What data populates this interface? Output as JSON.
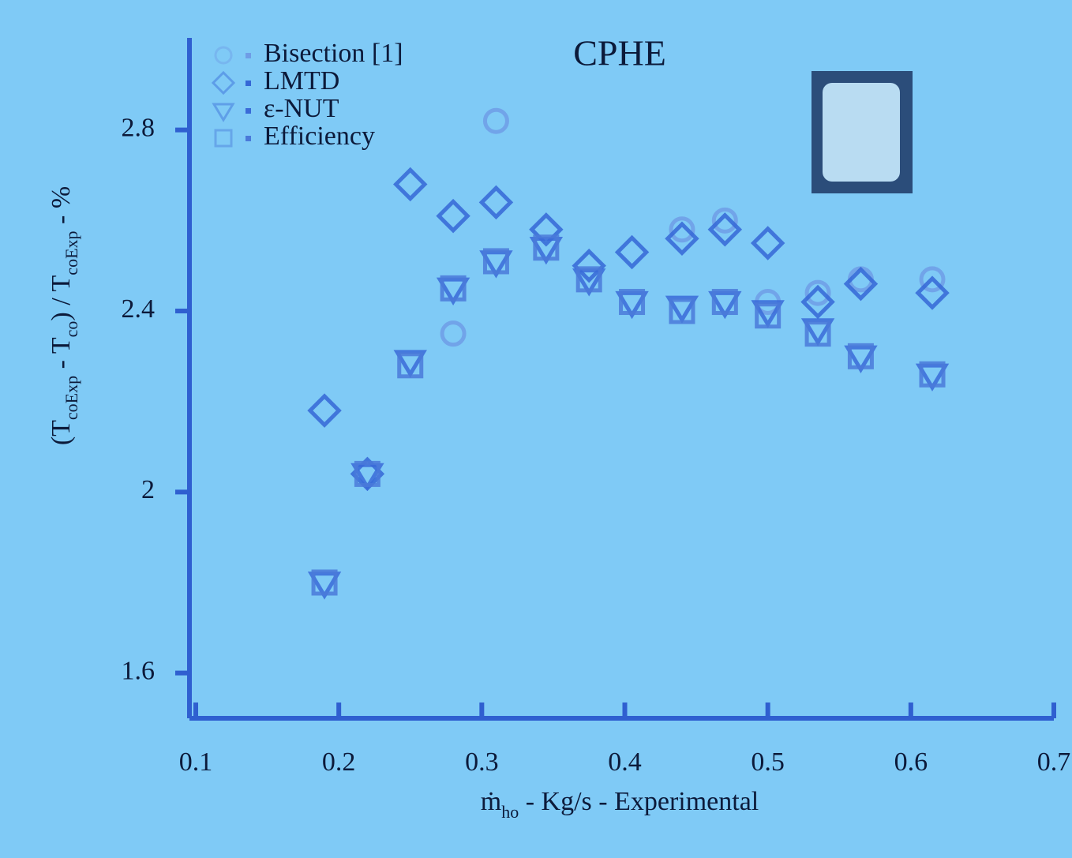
{
  "chart_data": {
    "type": "scatter",
    "title": "CPHE",
    "xlabel": [
      "ṁ",
      "ho",
      " - Kg/s - Experimental"
    ],
    "ylabel": [
      "(T",
      "coExp",
      " - T",
      "co",
      ") / T",
      "coExp",
      " - %"
    ],
    "xlim": [
      0.1,
      0.7
    ],
    "xticks": [
      0.1,
      0.2,
      0.3,
      0.4,
      0.5,
      0.6,
      0.7
    ],
    "ylim": [
      1.5,
      3.0
    ],
    "yticks": [
      1.6,
      2,
      2.4,
      2.8
    ],
    "legend": "upper left",
    "series": [
      {
        "name": "Bisection [1]",
        "color": "#6f9de6",
        "marker": "circle",
        "x": [
          0.28,
          0.31,
          0.44,
          0.47,
          0.5,
          0.535,
          0.565,
          0.615
        ],
        "values": [
          2.35,
          2.82,
          2.58,
          2.6,
          2.42,
          2.44,
          2.47,
          2.47
        ]
      },
      {
        "name": "LMTD",
        "color": "#3567d6",
        "marker": "diamond",
        "x": [
          0.19,
          0.22,
          0.25,
          0.28,
          0.31,
          0.345,
          0.375,
          0.405,
          0.44,
          0.47,
          0.5,
          0.535,
          0.565,
          0.615
        ],
        "values": [
          2.18,
          2.04,
          2.68,
          2.61,
          2.64,
          2.58,
          2.5,
          2.53,
          2.56,
          2.58,
          2.55,
          2.42,
          2.46,
          2.44
        ]
      },
      {
        "name": "ε-NUT",
        "color": "#3a6bd8",
        "marker": "triangle",
        "x": [
          0.19,
          0.22,
          0.25,
          0.28,
          0.31,
          0.345,
          0.375,
          0.405,
          0.44,
          0.47,
          0.5,
          0.535,
          0.565,
          0.615
        ],
        "values": [
          1.8,
          2.04,
          2.29,
          2.45,
          2.51,
          2.54,
          2.47,
          2.42,
          2.41,
          2.42,
          2.4,
          2.36,
          2.3,
          2.26
        ]
      },
      {
        "name": "Efficiency",
        "color": "#4a7ad9",
        "marker": "square",
        "x": [
          0.19,
          0.22,
          0.25,
          0.28,
          0.31,
          0.345,
          0.375,
          0.405,
          0.44,
          0.47,
          0.5,
          0.535,
          0.565,
          0.615
        ],
        "values": [
          1.8,
          2.04,
          2.28,
          2.45,
          2.51,
          2.54,
          2.47,
          2.42,
          2.4,
          2.42,
          2.39,
          2.35,
          2.3,
          2.26
        ]
      }
    ]
  }
}
